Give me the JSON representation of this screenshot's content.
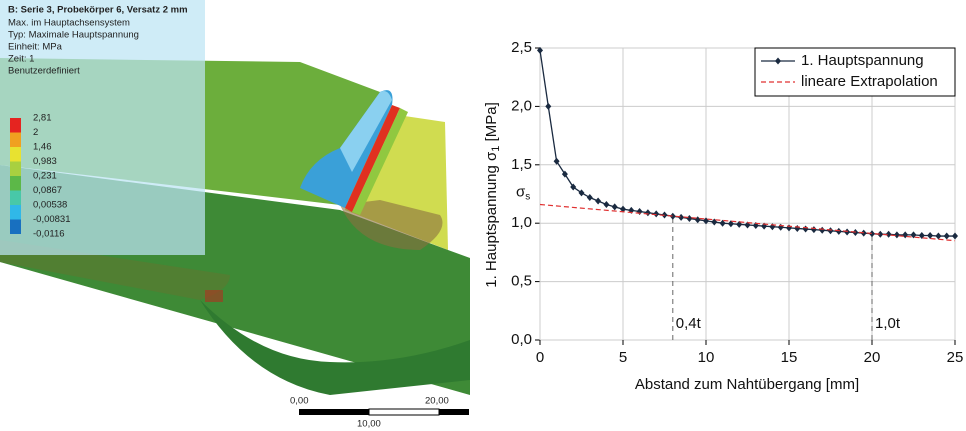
{
  "fem_legend": {
    "title": "B: Serie 3, Probekörper 6, Versatz 2 mm",
    "lines": [
      "Max. im Hauptachsensystem",
      "Typ: Maximale Hauptspannung",
      "Einheit: MPa",
      "Zeit: 1",
      "Benutzerdefiniert"
    ],
    "levels": [
      "2,81",
      "2",
      "1,46",
      "0,983",
      "0,231",
      "0,0867",
      "0,00538",
      "-0,00831",
      "-0,0116"
    ],
    "colors": [
      "#e52420",
      "#f0a020",
      "#e8e230",
      "#a8d040",
      "#5cb848",
      "#48c8a8",
      "#30b8e8",
      "#1870c0"
    ],
    "scale": [
      "0,00",
      "20,00",
      "10,00"
    ]
  },
  "chart_data": {
    "type": "line",
    "xlabel": "Abstand zum Nahtübergang [mm]",
    "ylabel_parts": [
      "1. Hauptspannung σ",
      "1",
      " [MPa]"
    ],
    "xlim": [
      0,
      25
    ],
    "xticks": [
      0,
      5,
      10,
      15,
      20,
      25
    ],
    "ylim": [
      0,
      2.5
    ],
    "yticks": [
      {
        "value": 0,
        "label": "0,0"
      },
      {
        "value": 0.5,
        "label": "0,5"
      },
      {
        "value": 1,
        "label": "1,0"
      },
      {
        "value": 1.5,
        "label": "1,5"
      },
      {
        "value": 2,
        "label": "2,0"
      },
      {
        "value": 2.5,
        "label": "2,5"
      }
    ],
    "grid": true,
    "legend": "top-right",
    "series": [
      {
        "name": "1. Hauptspannung",
        "color": "#1a2a40",
        "marker": "diamond",
        "x": [
          0,
          0.5,
          1,
          1.5,
          2,
          2.5,
          3,
          3.5,
          4,
          4.5,
          5,
          5.5,
          6,
          6.5,
          7,
          7.5,
          8,
          8.5,
          9,
          9.5,
          10,
          10.5,
          11,
          11.5,
          12,
          12.5,
          13,
          13.5,
          14,
          14.5,
          15,
          15.5,
          16,
          16.5,
          17,
          17.5,
          18,
          18.5,
          19,
          19.5,
          20,
          20.5,
          21,
          21.5,
          22,
          22.5,
          23,
          23.5,
          24,
          24.5,
          25
        ],
        "values": [
          2.48,
          2.0,
          1.53,
          1.42,
          1.31,
          1.26,
          1.22,
          1.19,
          1.16,
          1.14,
          1.12,
          1.11,
          1.1,
          1.09,
          1.08,
          1.07,
          1.06,
          1.05,
          1.04,
          1.03,
          1.02,
          1.01,
          1.0,
          0.995,
          0.99,
          0.985,
          0.98,
          0.975,
          0.97,
          0.965,
          0.96,
          0.955,
          0.95,
          0.945,
          0.94,
          0.935,
          0.93,
          0.925,
          0.92,
          0.915,
          0.91,
          0.905,
          0.905,
          0.9,
          0.9,
          0.9,
          0.895,
          0.895,
          0.89,
          0.89,
          0.89
        ]
      },
      {
        "name": "lineare Extrapolation",
        "color": "#e03030",
        "dashed": true,
        "x": [
          0,
          25
        ],
        "values": [
          1.16,
          0.85
        ]
      }
    ],
    "annotations": [
      {
        "text": "0,4t",
        "x": 8
      },
      {
        "text": "1,0t",
        "x": 20
      }
    ],
    "sigma_label": {
      "symbol": "σ",
      "subscript": "s"
    }
  }
}
